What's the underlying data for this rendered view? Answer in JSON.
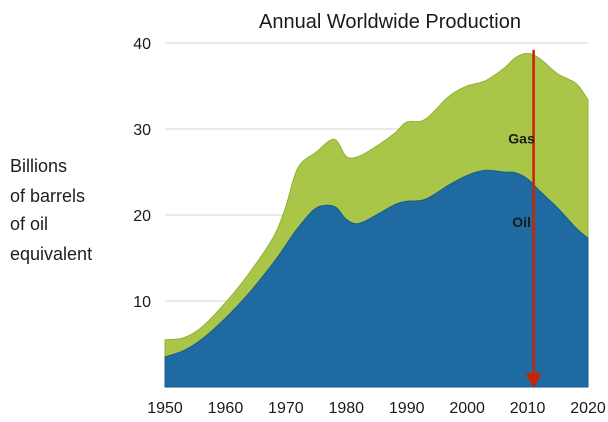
{
  "chart_data": {
    "type": "area",
    "title": "Annual Worldwide Production",
    "ylabel_lines": [
      "Billions",
      "of barrels",
      "of oil",
      "equivalent"
    ],
    "xlabel": "",
    "x_ticks": [
      1950,
      1960,
      1970,
      1980,
      1990,
      2000,
      2010,
      2020
    ],
    "y_ticks": [
      10,
      20,
      30,
      40
    ],
    "xlim": [
      1950,
      2020
    ],
    "ylim": [
      0,
      40
    ],
    "grid": "horizontal",
    "stacked": true,
    "x": [
      1950,
      1953,
      1956,
      1960,
      1964,
      1968,
      1970,
      1972,
      1975,
      1978,
      1980,
      1982,
      1985,
      1988,
      1990,
      1993,
      1997,
      2000,
      2003,
      2006,
      2008,
      2010,
      2012,
      2015,
      2018,
      2020
    ],
    "series": [
      {
        "name": "Oil",
        "color": "#1f6aa0",
        "values": [
          3.5,
          4.2,
          5.5,
          8.0,
          11.0,
          14.5,
          16.5,
          18.5,
          20.8,
          21.0,
          19.5,
          19.0,
          20.0,
          21.2,
          21.6,
          21.8,
          23.5,
          24.6,
          25.2,
          25.0,
          24.9,
          24.2,
          22.8,
          20.8,
          18.5,
          17.3
        ]
      },
      {
        "name": "Gas",
        "color": "#a9c648",
        "values": [
          2.0,
          1.5,
          1.4,
          1.8,
          2.3,
          3.0,
          4.5,
          7.0,
          6.5,
          7.8,
          7.3,
          7.8,
          8.0,
          8.3,
          9.2,
          9.3,
          10.3,
          10.4,
          10.4,
          12.0,
          13.4,
          14.6,
          15.4,
          15.6,
          16.8,
          16.1
        ]
      }
    ],
    "annotations": [
      {
        "text": "Gas",
        "x": 2009,
        "y": 28.3
      },
      {
        "text": "Oil",
        "x": 2009,
        "y": 18.6
      }
    ],
    "marker": {
      "type": "down-arrow",
      "x": 2011,
      "from_y": 39.2,
      "to_y": 0,
      "color": "#cc2200"
    }
  }
}
